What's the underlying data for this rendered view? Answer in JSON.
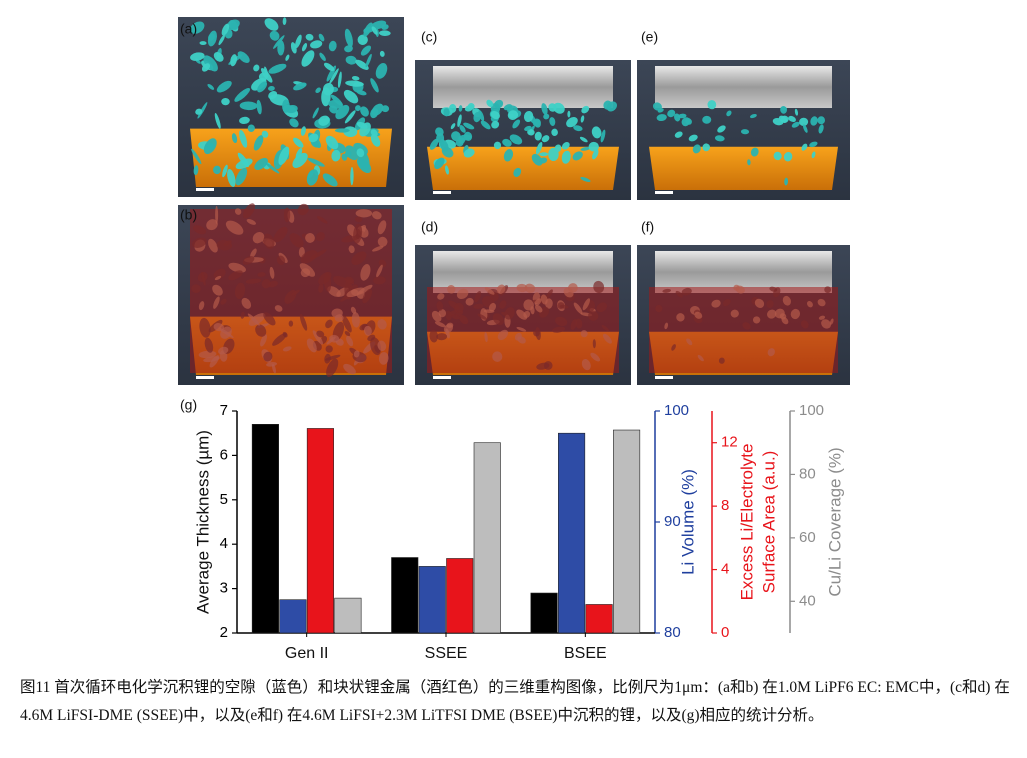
{
  "panels": {
    "labels": [
      "(a)",
      "(b)",
      "(c)",
      "(d)",
      "(e)",
      "(f)"
    ]
  },
  "chart_data": {
    "type": "bar",
    "label": "(g)",
    "categories": [
      "Gen II",
      "SSEE",
      "BSEE"
    ],
    "ylabel": "Average Thickness (µm)",
    "ylim": [
      2,
      7
    ],
    "yticks": [
      2,
      3,
      4,
      5,
      6,
      7
    ],
    "y2label": "Li Volume (%)",
    "y2lim": [
      80,
      100
    ],
    "y2ticks": [
      80,
      90,
      100
    ],
    "y2color": "#1f3f9e",
    "y3label": [
      "Excess Li/Electrolyte",
      "Surface Area (a.u.)"
    ],
    "y3lim": [
      0,
      14
    ],
    "y3ticks": [
      0,
      4,
      8,
      12
    ],
    "y3color": "#e8141b",
    "y4label": "Cu/Li Coverage (%)",
    "y4lim": [
      30,
      100
    ],
    "y4ticks": [
      40,
      60,
      80,
      100
    ],
    "y4color": "#8c8c8c",
    "series": [
      {
        "color": "#000000",
        "values": [
          6.7,
          3.7,
          2.9
        ]
      },
      {
        "color": "#2e4ca6",
        "axis": "y2",
        "values": [
          83,
          86,
          98
        ]
      },
      {
        "color": "#e8141b",
        "axis": "y3",
        "values": [
          12.9,
          4.7,
          1.8
        ]
      },
      {
        "color": "#bdbdbd",
        "axis": "y4",
        "values": [
          41,
          90,
          94
        ]
      }
    ]
  },
  "caption": "图11 首次循环电化学沉积锂的空隙（蓝色）和块状锂金属（酒红色）的三维重构图像，比例尺为1μm：(a和b) 在1.0M LiPF6 EC: EMC中，(c和d) 在4.6M LiFSI-DME (SSEE)中，以及(e和f) 在4.6M LiFSI+2.3M LiTFSI DME (BSEE)中沉积的锂，以及(g)相应的统计分析。"
}
